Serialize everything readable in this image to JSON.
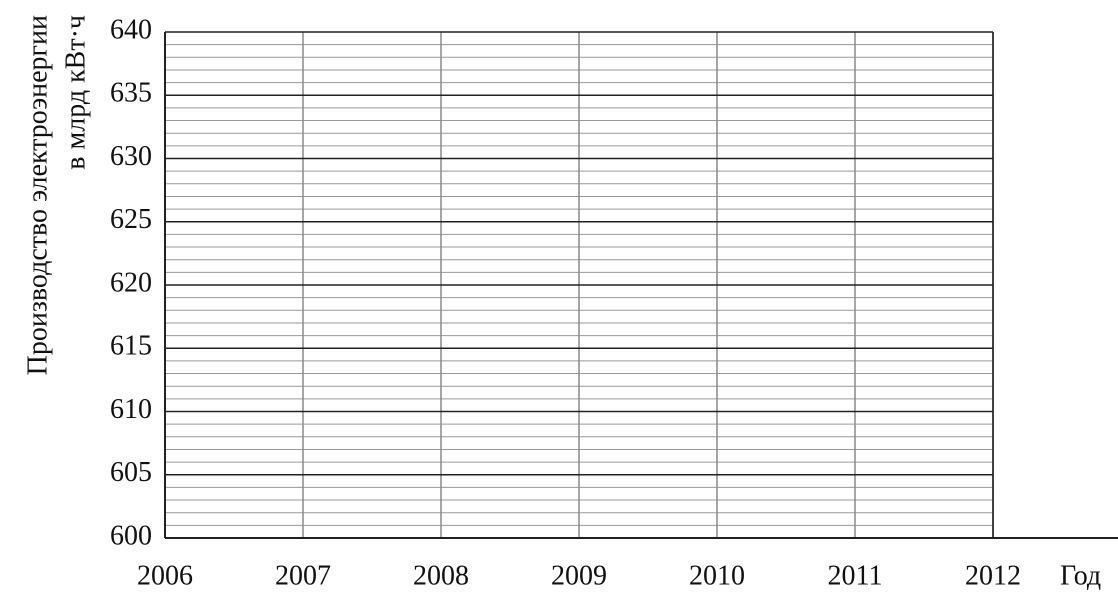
{
  "chart_data": {
    "type": "line",
    "y_label_lines": [
      "Производство электроэнергии",
      "в млрд кВт·ч"
    ],
    "x_label": "Год",
    "series": [],
    "xlim": [
      2006,
      2012
    ],
    "xticks": [
      2006,
      2007,
      2008,
      2009,
      2010,
      2011,
      2012
    ],
    "ylim": [
      600,
      640
    ],
    "yticks": [
      600,
      605,
      610,
      615,
      620,
      625,
      630,
      635,
      640
    ],
    "yminorticks": [
      601,
      602,
      603,
      604,
      606,
      607,
      608,
      609,
      611,
      612,
      613,
      614,
      616,
      617,
      618,
      619,
      621,
      622,
      623,
      624,
      626,
      627,
      628,
      629,
      631,
      632,
      633,
      634,
      636,
      637,
      638,
      639
    ],
    "grid": true
  }
}
